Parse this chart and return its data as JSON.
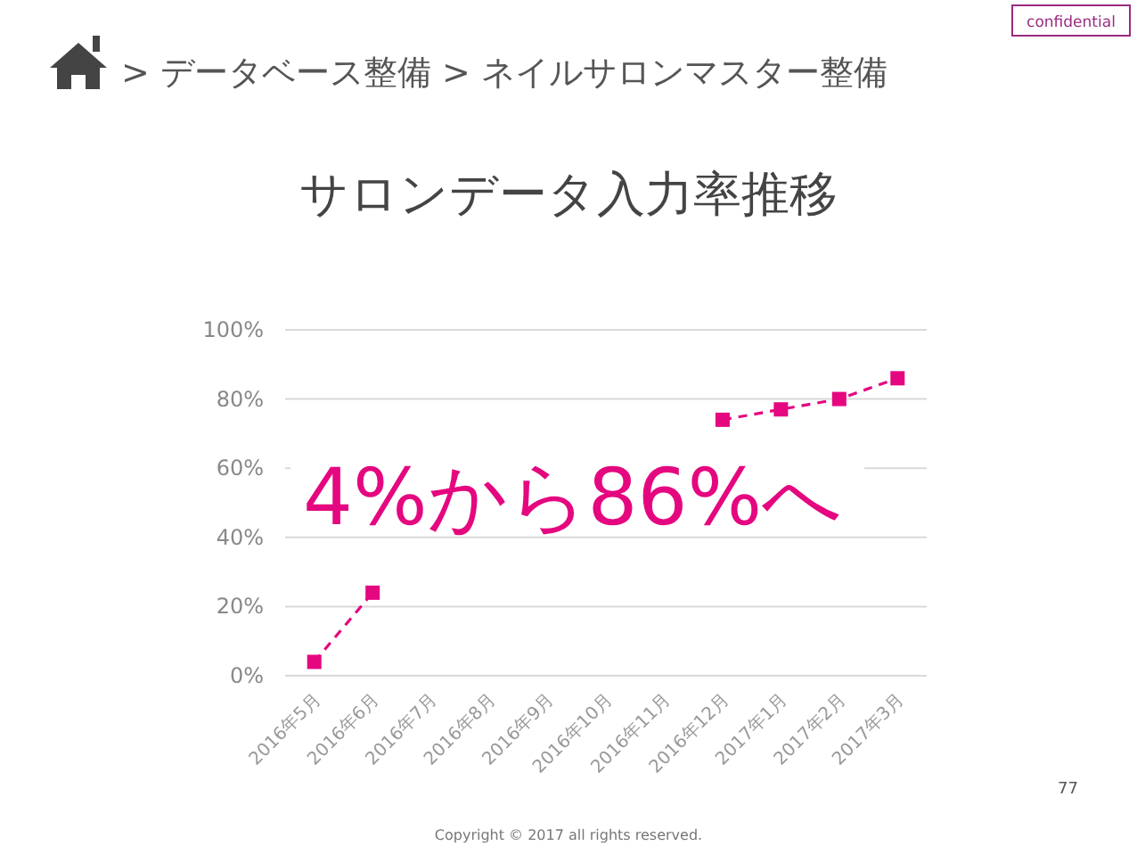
{
  "chart_data": {
    "type": "line",
    "title": "サロンデータ入力率推移",
    "subtitle": "> データベース整備 > ネイルサロンマスター整備",
    "categories": [
      "2016年5月",
      "2016年6月",
      "2016年7月",
      "2016年8月",
      "2016年9月",
      "2016年10月",
      "2016年11月",
      "2016年12月",
      "2017年1月",
      "2017年2月",
      "2017年3月"
    ],
    "series": [
      {
        "color": "#e5077f",
        "values": [
          4,
          24,
          null,
          null,
          null,
          null,
          null,
          74,
          77,
          80,
          86
        ]
      }
    ],
    "ylim": [
      0,
      100
    ],
    "yticks": [
      {
        "value": 0,
        "label": "0%"
      },
      {
        "value": 20,
        "label": "20%"
      },
      {
        "value": 40,
        "label": "40%"
      },
      {
        "value": 60,
        "label": "60%"
      },
      {
        "value": 80,
        "label": "80%"
      },
      {
        "value": 100,
        "label": "100%"
      }
    ],
    "grid": "y",
    "marker": "square",
    "line_style": "dashed",
    "annotations": [
      "4%から86%へ",
      "confidential",
      "Copyright © 2017 all rights reserved.",
      "77"
    ]
  }
}
